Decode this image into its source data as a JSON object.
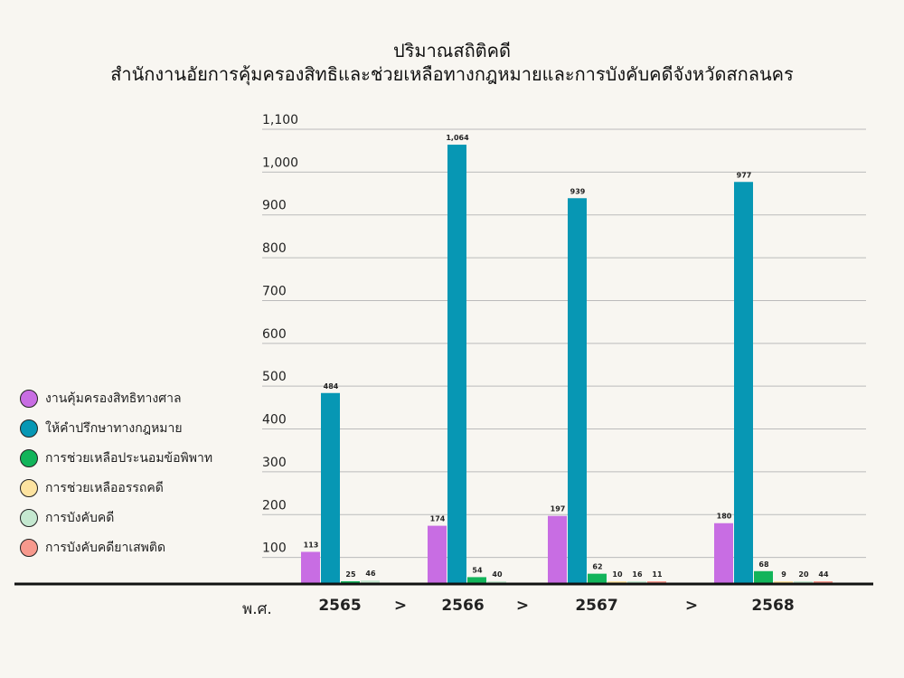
{
  "chart_data": {
    "type": "bar",
    "title": "ปริมาณสถิติคดี",
    "subtitle": "สำนักงานอัยการคุ้มครองสิทธิและช่วยเหลือทางกฎหมายและการบังคับคดีจังหวัดสกลนคร",
    "xlabel": "พ.ศ.",
    "categories": [
      "2565",
      "2566",
      "2567",
      "2568"
    ],
    "separator": ">",
    "ylim": [
      0,
      1100
    ],
    "yticks": [
      100,
      200,
      300,
      400,
      500,
      600,
      700,
      800,
      900,
      1000,
      1100
    ],
    "ytick_labels": [
      "100",
      "200",
      "300",
      "400",
      "500",
      "600",
      "700",
      "800",
      "900",
      "1,000",
      "1,100"
    ],
    "legend_position": "left",
    "series": [
      {
        "name": "งานคุ้มครองสิทธิทางศาล",
        "color": "#c86de3",
        "values": [
          113,
          174,
          197,
          180
        ]
      },
      {
        "name": "ให้คำปรึกษาทางกฎหมาย",
        "color": "#0797b4",
        "values": [
          484,
          1064,
          939,
          977
        ]
      },
      {
        "name": "การช่วยเหลือประนอมข้อพิพาท",
        "color": "#12b45a",
        "values": [
          25,
          54,
          62,
          68
        ]
      },
      {
        "name": "การช่วยเหลืออรรถคดี",
        "color": "#fde3a0",
        "values": [
          null,
          null,
          10,
          9
        ]
      },
      {
        "name": "การบังคับคดี",
        "color": "#c5e8d0",
        "values": [
          46,
          40,
          16,
          20
        ]
      },
      {
        "name": "การบังคับคดียาเสพติด",
        "color": "#f7998d",
        "values": [
          null,
          null,
          11,
          44
        ]
      }
    ],
    "data_labels": [
      [
        "113",
        "484",
        "25",
        "46"
      ],
      [
        "174",
        "1,064",
        "54",
        "40"
      ],
      [
        "197",
        "939",
        "62",
        "10",
        "16",
        "11"
      ],
      [
        "180",
        "977",
        "68",
        "9",
        "20",
        "44"
      ]
    ]
  }
}
